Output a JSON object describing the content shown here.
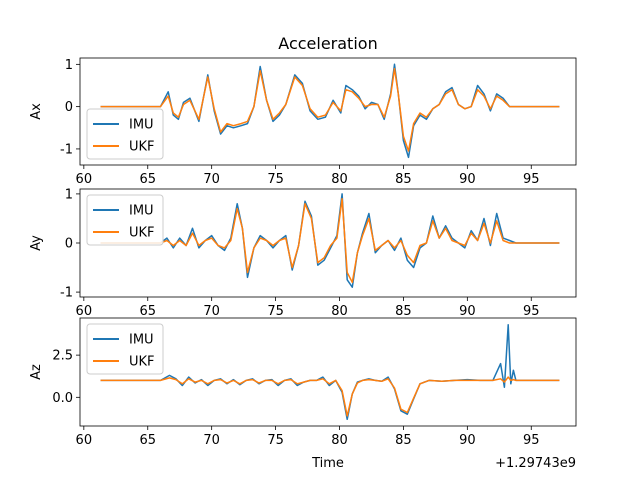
{
  "figure": {
    "title": "Acceleration",
    "xlabel": "Time",
    "offset_label": "+1.29743e9",
    "legend": [
      {
        "label": "IMU",
        "color": "#1f77b4"
      },
      {
        "label": "UKF",
        "color": "#ff7f0e"
      }
    ]
  },
  "chart_data": [
    {
      "type": "line",
      "ylabel": "Ax",
      "xlim": [
        59.7,
        98.5
      ],
      "ylim": [
        -1.38,
        1.15
      ],
      "xticks": [
        60,
        65,
        70,
        75,
        80,
        85,
        90,
        95
      ],
      "yticks": [
        -1,
        0,
        1
      ],
      "legend_position": "lower-left",
      "series": [
        {
          "name": "IMU",
          "color": "#1f77b4",
          "x": [
            61.3,
            66.0,
            66.6,
            67.0,
            67.4,
            67.8,
            68.3,
            69.0,
            69.7,
            70.2,
            70.7,
            71.2,
            71.7,
            72.3,
            72.8,
            73.3,
            73.8,
            74.3,
            74.8,
            75.3,
            75.8,
            76.5,
            77.1,
            77.7,
            78.3,
            78.9,
            79.5,
            80.1,
            80.5,
            81.0,
            81.5,
            82.0,
            82.5,
            83.0,
            83.5,
            84.0,
            84.3,
            84.6,
            85.0,
            85.4,
            85.8,
            86.3,
            86.8,
            87.3,
            87.8,
            88.3,
            88.8,
            89.3,
            89.8,
            90.3,
            90.8,
            91.3,
            91.8,
            92.3,
            92.8,
            93.3,
            93.8,
            97.2
          ],
          "y": [
            0.0,
            0.0,
            0.35,
            -0.2,
            -0.3,
            0.1,
            0.2,
            -0.35,
            0.75,
            -0.1,
            -0.65,
            -0.45,
            -0.5,
            -0.45,
            -0.4,
            0.0,
            0.95,
            0.15,
            -0.35,
            -0.2,
            0.05,
            0.75,
            0.55,
            -0.1,
            -0.3,
            -0.25,
            0.15,
            -0.15,
            0.5,
            0.4,
            0.25,
            -0.05,
            0.1,
            0.05,
            -0.3,
            0.3,
            1.0,
            0.3,
            -0.8,
            -1.2,
            -0.45,
            -0.2,
            -0.3,
            -0.05,
            0.05,
            0.35,
            0.45,
            0.05,
            -0.05,
            0.0,
            0.5,
            0.3,
            -0.1,
            0.3,
            0.2,
            0.0,
            0.0,
            0.0
          ]
        },
        {
          "name": "UKF",
          "color": "#ff7f0e",
          "x": [
            61.3,
            66.0,
            66.6,
            67.0,
            67.4,
            67.8,
            68.3,
            69.0,
            69.7,
            70.2,
            70.7,
            71.2,
            71.7,
            72.3,
            72.8,
            73.3,
            73.8,
            74.3,
            74.8,
            75.3,
            75.8,
            76.5,
            77.1,
            77.7,
            78.3,
            78.9,
            79.5,
            80.1,
            80.5,
            81.0,
            81.5,
            82.0,
            82.5,
            83.0,
            83.5,
            84.0,
            84.3,
            84.6,
            85.0,
            85.4,
            85.8,
            86.3,
            86.8,
            87.3,
            87.8,
            88.3,
            88.8,
            89.3,
            89.8,
            90.3,
            90.8,
            91.3,
            91.8,
            92.3,
            92.8,
            93.3,
            93.8,
            97.2
          ],
          "y": [
            0.0,
            0.0,
            0.25,
            -0.15,
            -0.25,
            0.05,
            0.15,
            -0.3,
            0.7,
            -0.05,
            -0.6,
            -0.4,
            -0.45,
            -0.4,
            -0.35,
            0.0,
            0.85,
            0.15,
            -0.3,
            -0.15,
            0.05,
            0.7,
            0.5,
            -0.05,
            -0.25,
            -0.2,
            0.1,
            -0.1,
            0.4,
            0.35,
            0.2,
            0.0,
            0.05,
            0.05,
            -0.25,
            0.25,
            0.9,
            0.3,
            -0.7,
            -1.05,
            -0.4,
            -0.15,
            -0.25,
            -0.05,
            0.05,
            0.3,
            0.4,
            0.05,
            -0.05,
            0.0,
            0.4,
            0.25,
            -0.05,
            0.25,
            0.15,
            0.0,
            0.0,
            0.0
          ]
        }
      ]
    },
    {
      "type": "line",
      "ylabel": "Ay",
      "xlim": [
        59.7,
        98.5
      ],
      "ylim": [
        -1.1,
        1.1
      ],
      "xticks": [
        60,
        65,
        70,
        75,
        80,
        85,
        90,
        95
      ],
      "yticks": [
        -1,
        0,
        1
      ],
      "legend_position": "upper-left",
      "series": [
        {
          "name": "IMU",
          "color": "#1f77b4",
          "x": [
            61.3,
            66.0,
            66.5,
            67.0,
            67.5,
            68.0,
            68.5,
            69.0,
            69.5,
            70.0,
            70.5,
            71.0,
            71.5,
            72.0,
            72.4,
            72.8,
            73.3,
            73.8,
            74.3,
            74.8,
            75.3,
            75.8,
            76.3,
            76.8,
            77.3,
            77.8,
            78.3,
            78.8,
            79.3,
            79.8,
            80.2,
            80.6,
            81.0,
            81.4,
            81.8,
            82.3,
            82.8,
            83.3,
            83.8,
            84.3,
            84.8,
            85.3,
            85.8,
            86.3,
            86.8,
            87.3,
            87.8,
            88.3,
            88.8,
            89.3,
            89.8,
            90.3,
            90.8,
            91.3,
            91.8,
            92.3,
            92.8,
            93.3,
            93.8,
            97.2
          ],
          "y": [
            0.0,
            0.0,
            0.1,
            -0.1,
            0.1,
            -0.05,
            0.3,
            -0.1,
            0.05,
            0.15,
            -0.05,
            -0.15,
            0.1,
            0.8,
            0.3,
            -0.7,
            -0.1,
            0.15,
            0.05,
            -0.1,
            0.05,
            0.15,
            -0.55,
            -0.05,
            0.85,
            0.55,
            -0.45,
            -0.35,
            -0.1,
            0.15,
            1.0,
            -0.75,
            -0.9,
            -0.2,
            0.2,
            0.6,
            -0.2,
            -0.05,
            0.05,
            -0.15,
            0.1,
            -0.35,
            -0.5,
            -0.1,
            0.0,
            0.55,
            0.1,
            0.35,
            0.1,
            0.0,
            -0.1,
            0.25,
            0.05,
            0.5,
            -0.05,
            0.6,
            0.1,
            0.05,
            0.0,
            0.0
          ]
        },
        {
          "name": "UKF",
          "color": "#ff7f0e",
          "x": [
            61.3,
            66.0,
            66.5,
            67.0,
            67.5,
            68.0,
            68.5,
            69.0,
            69.5,
            70.0,
            70.5,
            71.0,
            71.5,
            72.0,
            72.4,
            72.8,
            73.3,
            73.8,
            74.3,
            74.8,
            75.3,
            75.8,
            76.3,
            76.8,
            77.3,
            77.8,
            78.3,
            78.8,
            79.3,
            79.8,
            80.2,
            80.6,
            81.0,
            81.4,
            81.8,
            82.3,
            82.8,
            83.3,
            83.8,
            84.3,
            84.8,
            85.3,
            85.8,
            86.3,
            86.8,
            87.3,
            87.8,
            88.3,
            88.8,
            89.3,
            89.8,
            90.3,
            90.8,
            91.3,
            91.8,
            92.3,
            92.8,
            93.3,
            93.8,
            97.2
          ],
          "y": [
            0.0,
            0.0,
            0.05,
            -0.05,
            0.05,
            -0.05,
            0.2,
            -0.05,
            0.05,
            0.1,
            -0.05,
            -0.1,
            0.05,
            0.7,
            0.3,
            -0.6,
            -0.1,
            0.1,
            0.05,
            -0.05,
            0.05,
            0.1,
            -0.5,
            -0.05,
            0.8,
            0.5,
            -0.4,
            -0.3,
            -0.05,
            0.1,
            0.9,
            -0.6,
            -0.8,
            -0.2,
            0.15,
            0.5,
            -0.15,
            -0.05,
            0.05,
            -0.1,
            0.05,
            -0.25,
            -0.4,
            -0.05,
            0.0,
            0.45,
            0.1,
            0.3,
            0.05,
            0.0,
            -0.05,
            0.2,
            0.05,
            0.4,
            0.0,
            0.45,
            0.05,
            0.0,
            0.0,
            0.0
          ]
        }
      ]
    },
    {
      "type": "line",
      "ylabel": "Az",
      "xlim": [
        59.7,
        98.5
      ],
      "ylim": [
        -1.7,
        4.7
      ],
      "xticks": [
        60,
        65,
        70,
        75,
        80,
        85,
        90,
        95
      ],
      "yticks": [
        0.0,
        2.5
      ],
      "legend_position": "upper-left",
      "series": [
        {
          "name": "IMU",
          "color": "#1f77b4",
          "x": [
            61.3,
            66.0,
            66.7,
            67.2,
            67.7,
            68.2,
            68.7,
            69.2,
            69.7,
            70.2,
            70.7,
            71.2,
            71.7,
            72.2,
            72.7,
            73.2,
            73.7,
            74.2,
            74.7,
            75.2,
            75.7,
            76.2,
            76.7,
            77.2,
            77.7,
            78.2,
            78.7,
            79.2,
            79.7,
            80.2,
            80.6,
            81.0,
            81.4,
            81.8,
            82.3,
            82.8,
            83.3,
            83.8,
            84.3,
            84.8,
            85.3,
            85.8,
            86.3,
            87.0,
            88.0,
            89.0,
            90.0,
            91.0,
            92.0,
            92.6,
            92.9,
            93.2,
            93.4,
            93.6,
            93.8,
            97.2
          ],
          "y": [
            1.0,
            1.0,
            1.3,
            1.1,
            0.7,
            1.2,
            0.85,
            1.05,
            0.7,
            1.0,
            1.1,
            0.8,
            1.05,
            0.75,
            1.0,
            1.1,
            0.8,
            1.0,
            1.05,
            0.7,
            1.0,
            1.1,
            0.7,
            0.9,
            1.0,
            1.0,
            1.2,
            0.7,
            1.0,
            0.3,
            -1.3,
            0.2,
            0.9,
            1.0,
            1.1,
            1.0,
            0.95,
            1.2,
            0.5,
            -0.8,
            -1.0,
            -0.1,
            0.8,
            1.0,
            0.95,
            1.0,
            1.05,
            1.0,
            1.0,
            2.0,
            0.6,
            4.3,
            0.8,
            1.6,
            1.0,
            1.0
          ]
        },
        {
          "name": "UKF",
          "color": "#ff7f0e",
          "x": [
            61.3,
            66.0,
            66.7,
            67.2,
            67.7,
            68.2,
            68.7,
            69.2,
            69.7,
            70.2,
            70.7,
            71.2,
            71.7,
            72.2,
            72.7,
            73.2,
            73.7,
            74.2,
            74.7,
            75.2,
            75.7,
            76.2,
            76.7,
            77.2,
            77.7,
            78.2,
            78.7,
            79.2,
            79.7,
            80.2,
            80.6,
            81.0,
            81.4,
            81.8,
            82.3,
            82.8,
            83.3,
            83.8,
            84.3,
            84.8,
            85.3,
            85.8,
            86.3,
            87.0,
            88.0,
            89.0,
            90.0,
            91.0,
            92.0,
            92.6,
            92.9,
            93.2,
            93.4,
            93.6,
            93.8,
            97.2
          ],
          "y": [
            1.0,
            1.0,
            1.15,
            1.05,
            0.8,
            1.1,
            0.9,
            1.0,
            0.8,
            1.0,
            1.05,
            0.85,
            1.0,
            0.8,
            1.0,
            1.05,
            0.85,
            1.0,
            1.0,
            0.8,
            1.0,
            1.05,
            0.8,
            0.9,
            1.0,
            1.0,
            1.1,
            0.8,
            1.0,
            0.4,
            -1.1,
            0.2,
            0.85,
            1.0,
            1.05,
            1.0,
            0.95,
            1.1,
            0.55,
            -0.7,
            -0.9,
            -0.05,
            0.8,
            1.0,
            0.95,
            1.0,
            1.0,
            1.0,
            1.0,
            1.1,
            0.9,
            1.2,
            1.0,
            1.05,
            1.0,
            1.0
          ]
        }
      ]
    }
  ]
}
